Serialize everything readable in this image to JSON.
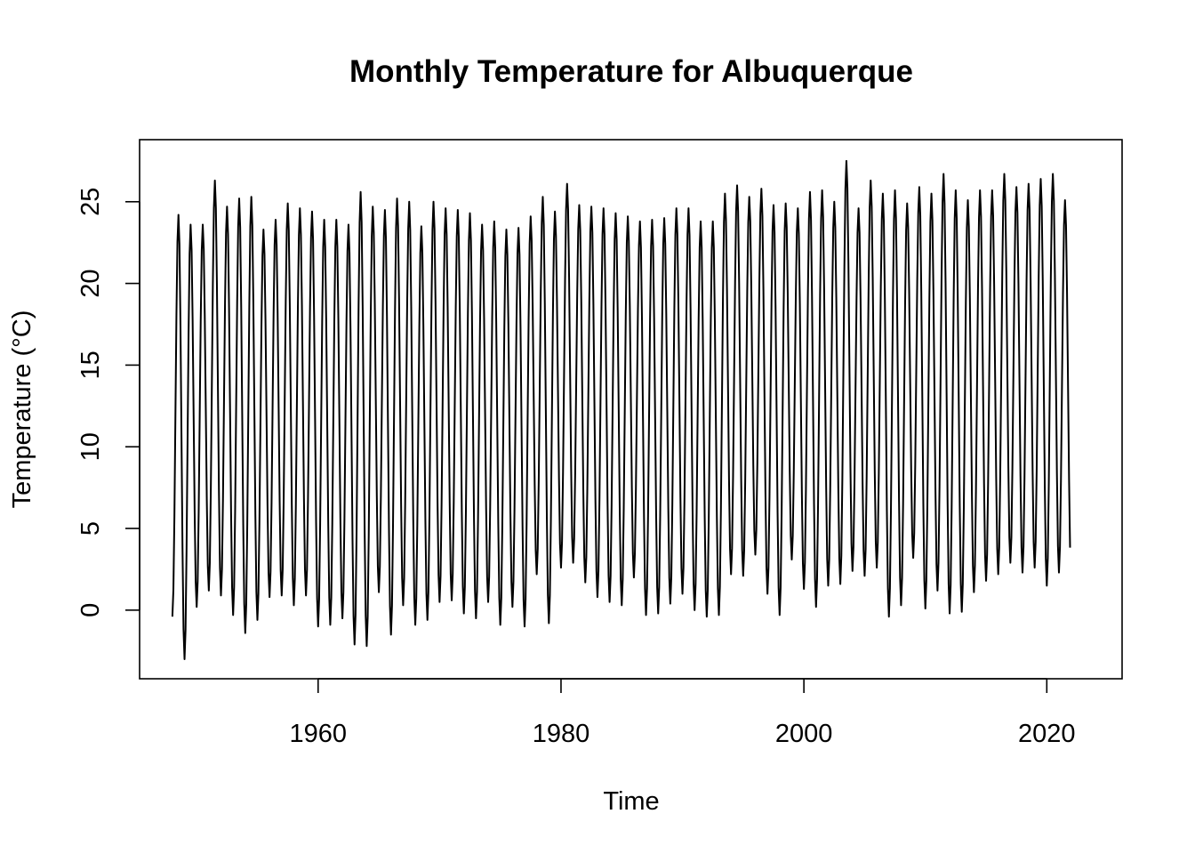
{
  "chart_data": {
    "type": "line",
    "title": "Monthly Temperature for Albuquerque",
    "xlabel": "Time",
    "ylabel": "Temperature (°C)",
    "xlim": [
      1945.3,
      2026.2
    ],
    "ylim": [
      -4.2,
      28.8
    ],
    "x_ticks": [
      1960,
      1980,
      2000,
      2020
    ],
    "x_tick_labels": [
      "1960",
      "1980",
      "2000",
      "2020"
    ],
    "y_ticks": [
      0,
      5,
      10,
      15,
      20,
      25
    ],
    "y_tick_labels": [
      "0",
      "5",
      "10",
      "15",
      "20",
      "25"
    ],
    "grid": false,
    "legend": "none",
    "line_color": "#000000",
    "series": [
      {
        "start": 1948.0,
        "frequency": 12,
        "peaks": [
          24.2,
          23.6,
          23.6,
          26.3,
          24.7,
          25.2,
          25.3,
          23.3,
          23.9,
          24.9,
          24.6,
          24.4,
          23.9,
          23.9,
          23.6,
          25.6,
          24.7,
          24.5,
          25.2,
          25.0,
          23.5,
          25.0,
          24.6,
          24.5,
          24.3,
          23.6,
          23.8,
          23.3,
          23.4,
          24.1,
          25.3,
          24.4,
          26.1,
          24.8,
          24.7,
          24.6,
          24.3,
          24.1,
          23.8,
          23.9,
          24.0,
          24.6,
          24.6,
          23.8,
          23.8,
          25.5,
          26.0,
          25.3,
          25.8,
          24.8,
          24.9,
          24.6,
          25.6,
          25.7,
          25.0,
          27.5,
          24.6,
          26.3,
          25.5,
          25.7,
          24.9,
          25.9,
          25.5,
          26.7,
          25.7,
          25.1,
          25.7,
          25.7,
          26.7,
          25.9,
          26.1,
          26.4,
          26.7,
          25.1,
          26.4
        ],
        "troughs": [
          -0.4,
          -3.0,
          0.2,
          1.2,
          0.9,
          -0.3,
          -1.4,
          -0.6,
          0.8,
          0.9,
          0.3,
          0.9,
          -1.0,
          -0.9,
          -0.5,
          -2.1,
          -2.2,
          1.1,
          -1.5,
          0.3,
          -0.9,
          -0.6,
          0.5,
          0.6,
          -0.2,
          -0.5,
          0.5,
          -0.9,
          0.2,
          -1.0,
          2.2,
          -0.8,
          2.6,
          2.9,
          1.7,
          0.8,
          0.5,
          0.3,
          2.0,
          -0.3,
          -0.2,
          0.4,
          1.0,
          0.0,
          -0.4,
          -0.3,
          2.2,
          2.1,
          3.4,
          1.0,
          -0.3,
          3.1,
          1.3,
          0.2,
          1.5,
          1.6,
          2.4,
          2.1,
          2.6,
          -0.4,
          0.3,
          3.2,
          0.1,
          1.2,
          -0.2,
          -0.1,
          1.1,
          1.8,
          2.2,
          2.9,
          2.3,
          2.6,
          1.5,
          2.3
        ],
        "last": 4.5
      }
    ]
  }
}
